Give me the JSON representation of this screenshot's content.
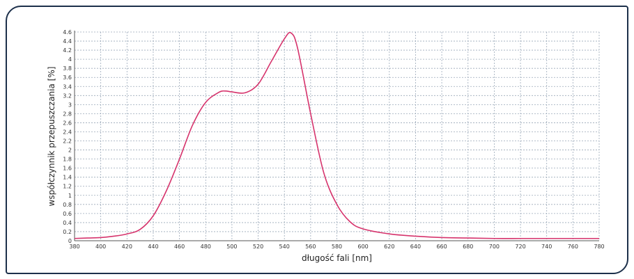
{
  "chart_data": {
    "type": "line",
    "title": "",
    "xlabel": "długość fali [nm]",
    "ylabel": "współczynnik przepuszczania [%]",
    "xlim": [
      380,
      780
    ],
    "ylim": [
      0,
      4.6
    ],
    "x_ticks": [
      380,
      400,
      420,
      440,
      460,
      480,
      500,
      520,
      540,
      560,
      580,
      600,
      620,
      640,
      660,
      680,
      700,
      720,
      740,
      760,
      780
    ],
    "y_ticks": [
      0,
      0.2,
      0.4,
      0.6,
      0.8,
      1,
      1.2,
      1.4,
      1.6,
      1.8,
      2,
      2.2,
      2.4,
      2.6,
      2.8,
      3,
      3.2,
      3.4,
      3.6,
      3.8,
      4,
      4.2,
      4.4,
      4.6
    ],
    "grid": true,
    "legend": "none",
    "series": [
      {
        "color": "#d6336c",
        "x": [
          380,
          390,
          400,
          410,
          420,
          430,
          440,
          450,
          460,
          470,
          480,
          490,
          495,
          500,
          510,
          520,
          530,
          540,
          545,
          550,
          560,
          570,
          580,
          590,
          600,
          620,
          640,
          660,
          680,
          700,
          720,
          740,
          760,
          780
        ],
        "y": [
          0.05,
          0.06,
          0.07,
          0.1,
          0.15,
          0.25,
          0.55,
          1.1,
          1.8,
          2.55,
          3.05,
          3.27,
          3.3,
          3.28,
          3.26,
          3.45,
          3.95,
          4.45,
          4.58,
          4.25,
          2.8,
          1.5,
          0.8,
          0.42,
          0.26,
          0.15,
          0.1,
          0.07,
          0.06,
          0.05,
          0.05,
          0.05,
          0.05,
          0.05
        ]
      }
    ]
  }
}
